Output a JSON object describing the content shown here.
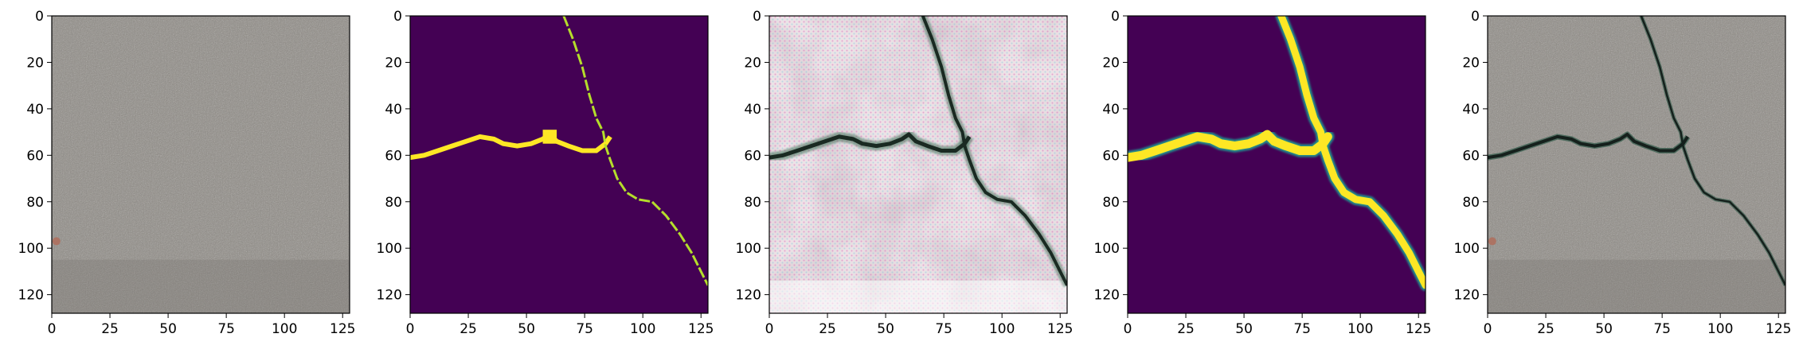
{
  "figure": {
    "panel_count": 5,
    "x_ticks": [
      "0",
      "25",
      "50",
      "75",
      "100",
      "125"
    ],
    "y_ticks": [
      "0",
      "20",
      "40",
      "60",
      "80",
      "100",
      "120"
    ],
    "x_tick_values": [
      0,
      25,
      50,
      75,
      100,
      125
    ],
    "y_tick_values": [
      0,
      20,
      40,
      60,
      80,
      100,
      120
    ],
    "axis_range": [
      0,
      128
    ],
    "panels": [
      {
        "content": "asphalt-photo-without-crack",
        "colors": {
          "base": "#8e8a84",
          "speck_light": "#b9b5ae",
          "speck_dark": "#6a6660",
          "spot": "#b06a58"
        }
      },
      {
        "content": "binary-crack-mask",
        "colors": {
          "background": "#440154",
          "crack": "#fde725",
          "edge": "#b5de2b"
        }
      },
      {
        "content": "generated-crack-texture",
        "colors": {
          "base": "#ece2e6",
          "shade": "#bfb3b6",
          "crack": "#1a2a22",
          "crack_edge": "#4f7a63"
        }
      },
      {
        "content": "smooth-crack-prediction",
        "colors": {
          "background": "#440154",
          "crack": "#fde725",
          "edge": "#21918c"
        }
      },
      {
        "content": "asphalt-photo-with-synthetic-crack",
        "colors": {
          "base": "#8e8a84",
          "crack": "#15201c",
          "crack_edge": "#2f5a48"
        }
      }
    ]
  }
}
